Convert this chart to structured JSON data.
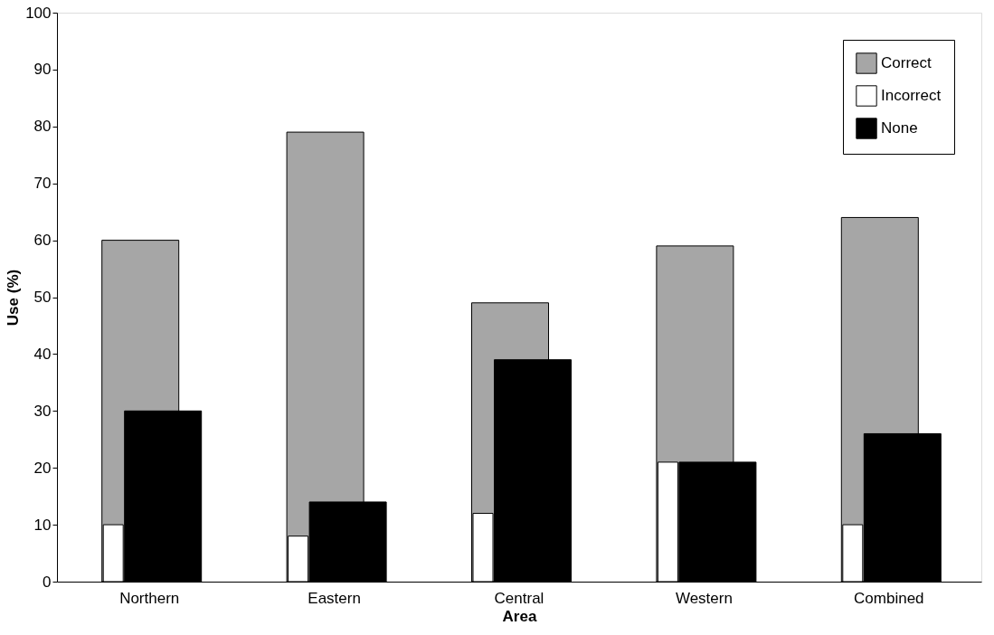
{
  "chart_data": {
    "type": "bar",
    "xlabel": "Area",
    "ylabel": "Use (%)",
    "categories": [
      "Northern",
      "Eastern",
      "Central",
      "Western",
      "Combined"
    ],
    "series": [
      {
        "name": "Correct",
        "color": "#a6a6a6",
        "values": [
          60,
          79,
          49,
          59,
          64
        ]
      },
      {
        "name": "Incorrect",
        "color": "#ffffff",
        "values": [
          10,
          8,
          12,
          21,
          10
        ]
      },
      {
        "name": "None",
        "color": "#000000",
        "values": [
          30,
          14,
          39,
          21,
          26
        ]
      }
    ],
    "ylim": [
      0,
      100
    ],
    "yticks": [
      0,
      10,
      20,
      30,
      40,
      50,
      60,
      70,
      80,
      90,
      100
    ],
    "grid": false,
    "legend": "top right"
  }
}
